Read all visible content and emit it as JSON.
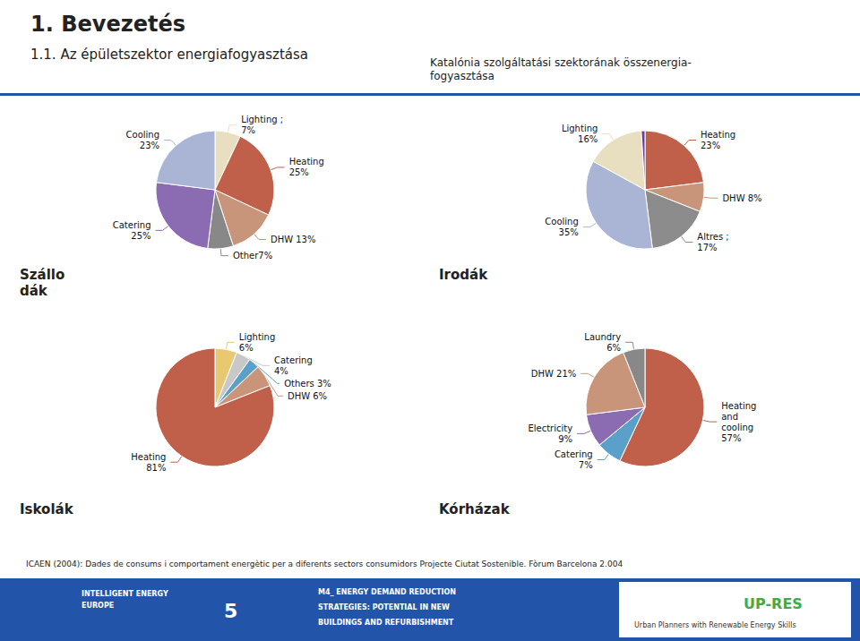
{
  "title": "1. Bevezetés",
  "subtitle": "1.1. Az épületszektor energiafogyasztása",
  "color": "#2255aa",
  "annotations": [
    {
      "text": "Katalónia szolgáltatási szektorának összenergia-\nfogyasztása"
    },
    {
      "text": "ICAEN (2004): Dades de consums i comportament energètic per a diferents sectors consumidors Projecte Ciutat Sostenible. Fòrum Barcelona 2.004"
    },
    {
      "text": "INTELLIGENT ENERGY"
    },
    {
      "text": "EUROPE"
    },
    {
      "text": "5"
    },
    {
      "text": "M4_ ENERGY DEMAND REDUCTION"
    },
    {
      "text": "STRATEGIES: POTENTIAL IN NEW"
    },
    {
      "text": "BUILDINGS AND REFURBISHMENT"
    },
    {
      "text": "UP-RES",
      "color": "#44aa44"
    },
    {
      "text": "Urban Planners with Renewable Energy Skills"
    }
  ],
  "chart_data": [
    {
      "type": "pie",
      "title": "Szállo\ndák",
      "categories": [
        "Lighting ;\n7%",
        "Heating\n25%",
        "DHW 13%",
        "Other7%",
        "Catering\n25%",
        "Cooling\n23%"
      ],
      "values": [
        7,
        25,
        13,
        7,
        25,
        23
      ],
      "colors": [
        "#e8dfc0",
        "#c0604a",
        "#c8957a",
        "#888888",
        "#8b6bb1",
        "#aab4d4"
      ]
    },
    {
      "type": "pie",
      "title": "Irodák",
      "categories": [
        "Heating\n23%",
        "DHW 8%",
        "Altres ;\n17%",
        "Cooling\n35%",
        "Lighting\n16%",
        null
      ],
      "values": [
        23,
        8,
        17,
        35,
        16,
        1
      ],
      "colors": [
        "#c0604a",
        "#c8957a",
        "#8c8c8c",
        "#aab4d4",
        "#e8dfc0",
        "#6b3fa0"
      ]
    },
    {
      "type": "pie",
      "title": "Iskolák",
      "categories": [
        "Lighting\n6%",
        "Catering\n4%",
        "Others 3%",
        "DHW 6%",
        "Heating\n81%"
      ],
      "values": [
        6,
        4,
        3,
        6,
        81
      ],
      "colors": [
        "#e8c870",
        "#c8c8c8",
        "#5ba0c8",
        "#c8957a",
        "#c0604a"
      ]
    },
    {
      "type": "pie",
      "title": "Kórházak",
      "categories": [
        "Heating\nand\ncooling\n57%",
        "Catering\n7%",
        "Electricity\n9%",
        "DHW 21%",
        "Laundry\n6%"
      ],
      "values": [
        57,
        7,
        9,
        21,
        6
      ],
      "colors": [
        "#c0604a",
        "#5ba0c8",
        "#8b6bb1",
        "#c8957a",
        "#888888"
      ]
    }
  ]
}
